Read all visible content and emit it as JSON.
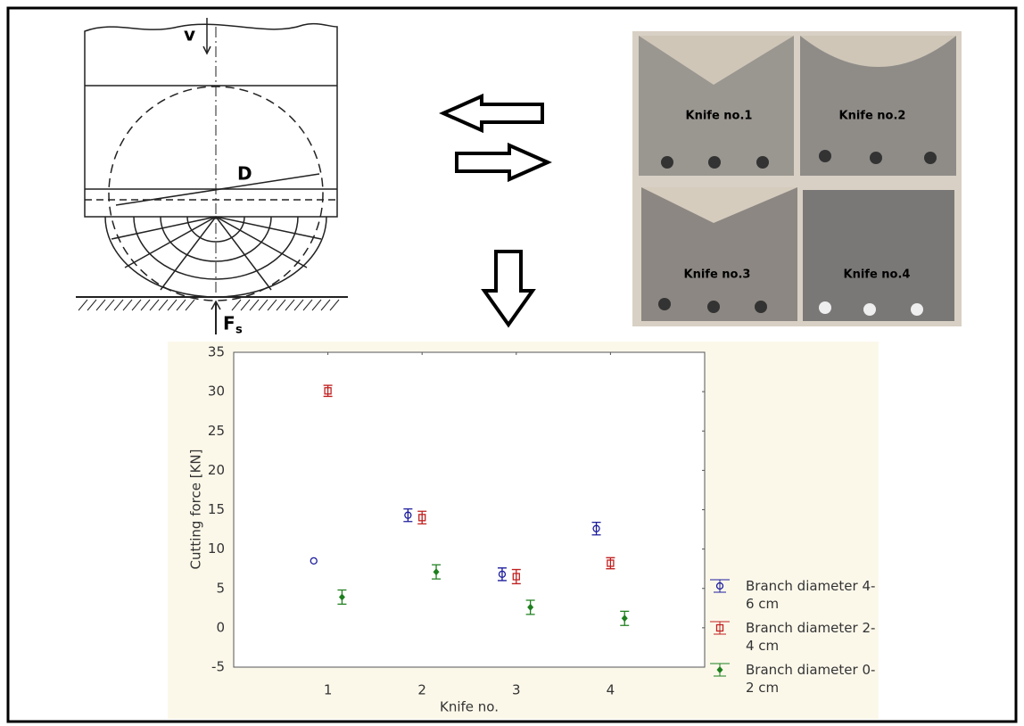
{
  "diagram": {
    "labels": [
      "v",
      "D",
      "F",
      "s"
    ]
  },
  "photo": {
    "labels": [
      "Knife no.1",
      "Knife no.2",
      "Knife no.3",
      "Knife no.4"
    ]
  },
  "chart_data": {
    "type": "scatter",
    "xlabel": "Knife no.",
    "ylabel": "Cutting force [KN]",
    "xlim": [
      0,
      5
    ],
    "xticks": [
      1,
      2,
      3,
      4
    ],
    "ylim": [
      -5,
      35
    ],
    "yticks": [
      -5,
      0,
      5,
      10,
      15,
      20,
      25,
      30,
      35
    ],
    "legend": "right",
    "series": [
      {
        "name": "Branch diameter 4-6 cm",
        "color": "#1c1c9c",
        "marker": "circle",
        "x": [
          0.85,
          1.85,
          2.85,
          3.85
        ],
        "values": [
          8.5,
          14.3,
          6.8,
          12.6
        ],
        "errors": [
          0,
          0.8,
          0.8,
          0.8
        ]
      },
      {
        "name": "Branch diameter 2-4 cm",
        "color": "#c02020",
        "marker": "square",
        "x": [
          1,
          2,
          3,
          4
        ],
        "values": [
          30.1,
          14,
          6.5,
          8.2
        ],
        "errors": [
          0.7,
          0.8,
          0.9,
          0.7
        ]
      },
      {
        "name": "Branch diameter 0-2 cm",
        "color": "#1e7f1e",
        "marker": "diamond",
        "x": [
          1.15,
          2.15,
          3.15,
          4.15
        ],
        "values": [
          3.9,
          7.1,
          2.6,
          1.2
        ],
        "errors": [
          0.9,
          0.9,
          0.9,
          0.9
        ]
      }
    ]
  }
}
